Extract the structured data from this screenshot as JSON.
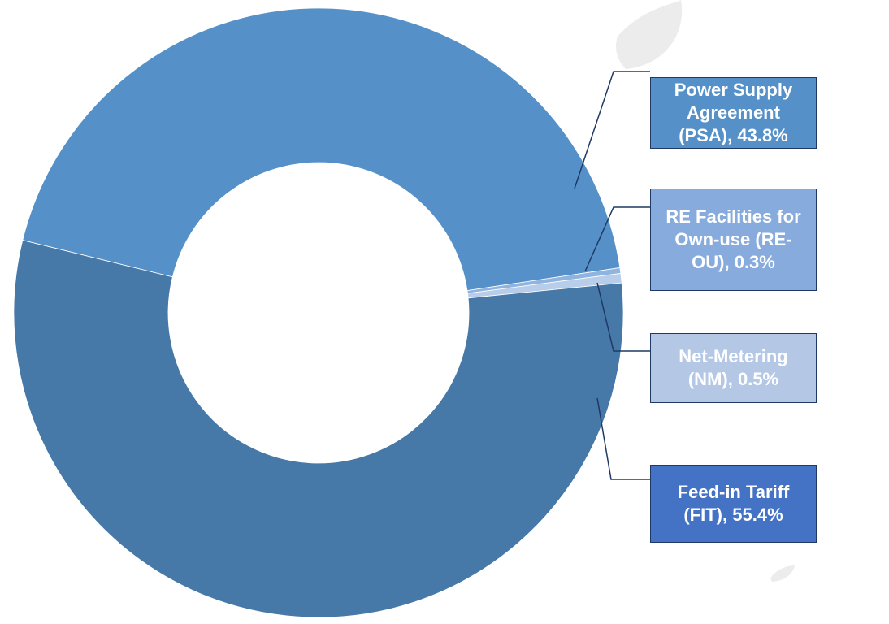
{
  "chart_data": {
    "type": "donut",
    "categories": [
      "Power Supply Agreement (PSA)",
      "RE Facilities for Own-use (RE-OU)",
      "Net-Metering (NM)",
      "Feed-in Tariff (FIT)"
    ],
    "values": [
      43.8,
      0.3,
      0.5,
      55.4
    ],
    "value_labels": [
      "43.8%",
      "0.3%",
      "0.5%",
      "55.4%"
    ],
    "colors": [
      "#5591c8",
      "#8fb4e0",
      "#b8cde9",
      "#4678a8"
    ],
    "label_colors": [
      "#5591c8",
      "#86abdc",
      "#b4c8e6",
      "#4472c4"
    ]
  }
}
